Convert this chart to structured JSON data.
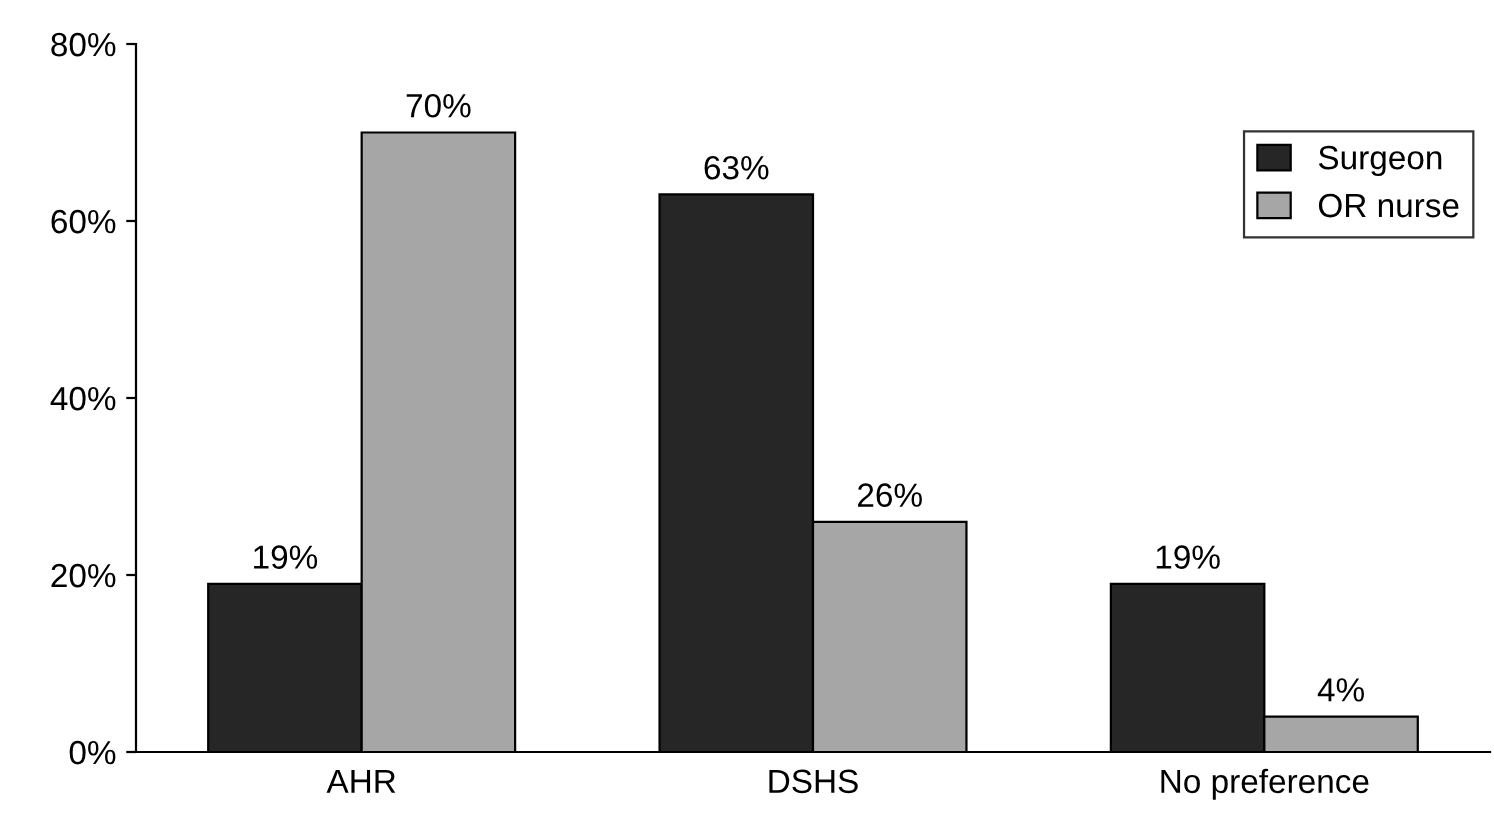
{
  "chart_data": {
    "type": "bar",
    "categories": [
      "AHR",
      "DSHS",
      "No preference"
    ],
    "series": [
      {
        "name": "Surgeon",
        "color": "#262626",
        "values": [
          19,
          63,
          19
        ],
        "value_labels": [
          "19%",
          "63%",
          "19%"
        ]
      },
      {
        "name": "OR nurse",
        "color": "#a6a6a6",
        "values": [
          70,
          26,
          4
        ],
        "value_labels": [
          "70%",
          "26%",
          "4%"
        ]
      }
    ],
    "ylim": [
      0,
      80
    ],
    "yticks": [
      {
        "value": 0,
        "label": "0%"
      },
      {
        "value": 20,
        "label": "20%"
      },
      {
        "value": 40,
        "label": "40%"
      },
      {
        "value": 60,
        "label": "60%"
      },
      {
        "value": 80,
        "label": "80%"
      }
    ],
    "grid": false,
    "legend": "top right"
  }
}
